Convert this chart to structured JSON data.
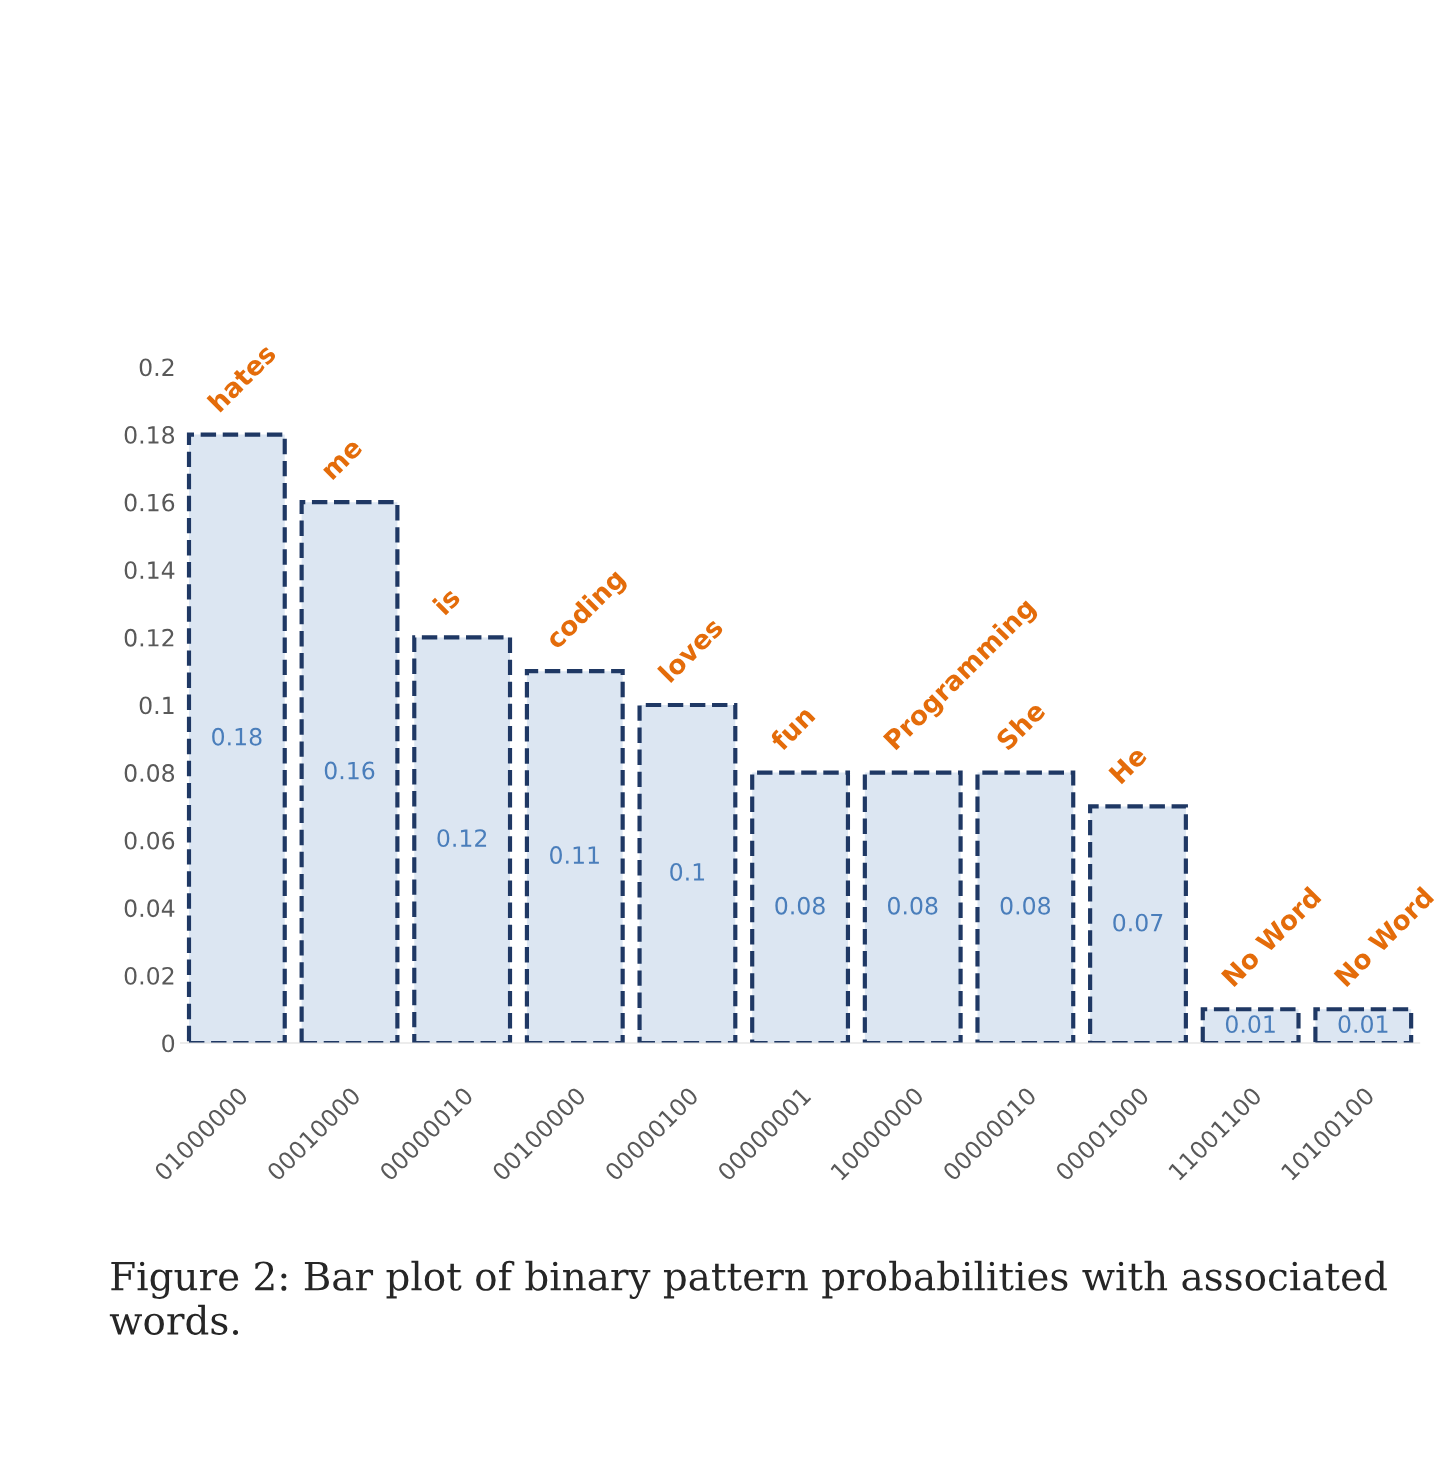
{
  "chart_data": {
    "type": "bar",
    "categories": [
      "01000000",
      "00010000",
      "00000010",
      "00100000",
      "00000100",
      "00000001",
      "10000000",
      "00000010",
      "00001000",
      "11001100",
      "10100100"
    ],
    "values": [
      0.18,
      0.16,
      0.12,
      0.11,
      0.1,
      0.08,
      0.08,
      0.08,
      0.07,
      0.01,
      0.01
    ],
    "color": "#dce6f2",
    "ylim": [
      0,
      0.2
    ],
    "yticks": [
      0,
      0.02,
      0.04,
      0.06,
      0.08,
      0.1,
      0.12,
      0.14,
      0.16,
      0.18,
      0.2
    ],
    "data_labels": true,
    "grid": false,
    "line_style": "dashed",
    "annotations": [
      "hates",
      "me",
      "is",
      "coding",
      "loves",
      "fun",
      "Programming",
      "She",
      "He",
      "No Word",
      "No Word",
      "Figure 2: Bar plot of binary pattern probabilities with associated words."
    ]
  }
}
